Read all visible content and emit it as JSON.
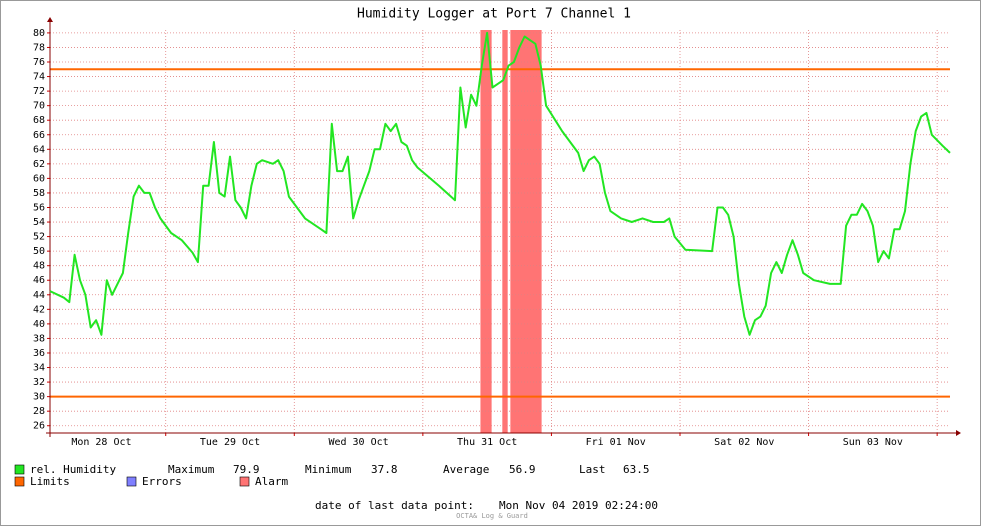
{
  "chart_data": {
    "type": "line",
    "title": "Humidity Logger at Port 7 Channel 1",
    "x": [
      "2019-10-28T02:24",
      "2019-10-28T05:00",
      "2019-10-28T06:00",
      "2019-10-28T07:00",
      "2019-10-28T08:00",
      "2019-10-28T09:00",
      "2019-10-28T10:00",
      "2019-10-28T11:00",
      "2019-10-28T12:00",
      "2019-10-28T13:00",
      "2019-10-28T14:00",
      "2019-10-28T15:00",
      "2019-10-28T16:00",
      "2019-10-28T17:00",
      "2019-10-28T18:00",
      "2019-10-28T19:00",
      "2019-10-28T20:00",
      "2019-10-28T21:00",
      "2019-10-28T22:00",
      "2019-10-28T23:00",
      "2019-10-29T01:00",
      "2019-10-29T03:00",
      "2019-10-29T05:00",
      "2019-10-29T06:00",
      "2019-10-29T07:00",
      "2019-10-29T08:00",
      "2019-10-29T09:00",
      "2019-10-29T10:00",
      "2019-10-29T11:00",
      "2019-10-29T12:00",
      "2019-10-29T13:00",
      "2019-10-29T14:00",
      "2019-10-29T15:00",
      "2019-10-29T16:00",
      "2019-10-29T17:00",
      "2019-10-29T18:00",
      "2019-10-29T20:00",
      "2019-10-29T21:00",
      "2019-10-29T22:00",
      "2019-10-29T23:00",
      "2019-10-30T02:00",
      "2019-10-30T05:00",
      "2019-10-30T06:00",
      "2019-10-30T07:00",
      "2019-10-30T08:00",
      "2019-10-30T09:00",
      "2019-10-30T10:00",
      "2019-10-30T11:00",
      "2019-10-30T12:00",
      "2019-10-30T13:00",
      "2019-10-30T14:00",
      "2019-10-30T15:00",
      "2019-10-30T16:00",
      "2019-10-30T17:00",
      "2019-10-30T18:00",
      "2019-10-30T19:00",
      "2019-10-30T20:00",
      "2019-10-30T21:00",
      "2019-10-30T22:00",
      "2019-10-30T23:00",
      "2019-10-31T03:00",
      "2019-10-31T06:00",
      "2019-10-31T07:00",
      "2019-10-31T08:00",
      "2019-10-31T09:00",
      "2019-10-31T10:00",
      "2019-10-31T11:00",
      "2019-10-31T12:00",
      "2019-10-31T13:00",
      "2019-10-31T14:00",
      "2019-10-31T15:00",
      "2019-10-31T16:00",
      "2019-10-31T17:00",
      "2019-10-31T18:00",
      "2019-10-31T19:00",
      "2019-10-31T20:00",
      "2019-10-31T21:00",
      "2019-10-31T22:00",
      "2019-10-31T23:00",
      "2019-11-01T02:00",
      "2019-11-01T05:00",
      "2019-11-01T06:00",
      "2019-11-01T07:00",
      "2019-11-01T08:00",
      "2019-11-01T09:00",
      "2019-11-01T10:00",
      "2019-11-01T11:00",
      "2019-11-01T13:00",
      "2019-11-01T15:00",
      "2019-11-01T17:00",
      "2019-11-01T19:00",
      "2019-11-01T21:00",
      "2019-11-01T22:00",
      "2019-11-01T23:00",
      "2019-11-02T01:00",
      "2019-11-02T06:00",
      "2019-11-02T07:00",
      "2019-11-02T08:00",
      "2019-11-02T09:00",
      "2019-11-02T10:00",
      "2019-11-02T11:00",
      "2019-11-02T12:00",
      "2019-11-02T13:00",
      "2019-11-02T14:00",
      "2019-11-02T15:00",
      "2019-11-02T16:00",
      "2019-11-02T17:00",
      "2019-11-02T18:00",
      "2019-11-02T19:00",
      "2019-11-02T20:00",
      "2019-11-02T21:00",
      "2019-11-02T22:00",
      "2019-11-02T23:00",
      "2019-11-03T01:00",
      "2019-11-03T04:00",
      "2019-11-03T06:00",
      "2019-11-03T07:00",
      "2019-11-03T08:00",
      "2019-11-03T09:00",
      "2019-11-03T10:00",
      "2019-11-03T11:00",
      "2019-11-03T12:00",
      "2019-11-03T13:00",
      "2019-11-03T14:00",
      "2019-11-03T15:00",
      "2019-11-03T16:00",
      "2019-11-03T17:00",
      "2019-11-03T18:00",
      "2019-11-03T19:00",
      "2019-11-03T20:00",
      "2019-11-03T21:00",
      "2019-11-03T22:00",
      "2019-11-03T23:00",
      "2019-11-04T01:00",
      "2019-11-04T02:24"
    ],
    "series": [
      {
        "name": "rel. Humidity",
        "color": "#22e622",
        "values": [
          44.5,
          43.6,
          43,
          49.5,
          46,
          44,
          39.5,
          40.5,
          38.5,
          46,
          44,
          45.5,
          47,
          52.5,
          57.5,
          59,
          58,
          58,
          56,
          54.5,
          52.5,
          51.5,
          49.8,
          48.5,
          59,
          59,
          65,
          58,
          57.5,
          63,
          57,
          56,
          54.5,
          59,
          62,
          62.5,
          62,
          62.5,
          61,
          57.5,
          54.5,
          53,
          52.5,
          67.5,
          61,
          61,
          63,
          54.5,
          57,
          59,
          61,
          64,
          64,
          67.5,
          66.5,
          67.5,
          65,
          64.5,
          62.5,
          61.5,
          59,
          57,
          72.5,
          67,
          71.5,
          70,
          75.5,
          80,
          72.5,
          73,
          73.5,
          75.5,
          76,
          78,
          79.5,
          79,
          78.5,
          75.5,
          70,
          66.5,
          63.5,
          61,
          62.5,
          63,
          62,
          58,
          55.5,
          54.5,
          54,
          54.5,
          54,
          54,
          54.5,
          52,
          50.2,
          50,
          56,
          56,
          55,
          52,
          45.5,
          41,
          38.5,
          40.5,
          41,
          42.5,
          47,
          48.5,
          47,
          49.5,
          51.5,
          49.5,
          47,
          46,
          45.5,
          45.5,
          53.5,
          55,
          55,
          56.5,
          55.5,
          53.5,
          48.5,
          50,
          49,
          53,
          53,
          55.5,
          62,
          66.5,
          68.5,
          69,
          66,
          64.5,
          63.5
        ]
      }
    ],
    "limits": {
      "name": "Limits",
      "color": "#ff6600",
      "values": [
        75,
        30
      ]
    },
    "errors": {
      "name": "Errors",
      "color": "#7f7fff"
    },
    "alarm": {
      "name": "Alarm",
      "color": "#ff7474",
      "periods": [
        [
          "2019-10-31T10:45",
          "2019-10-31T12:50"
        ],
        [
          "2019-10-31T14:50",
          "2019-10-31T15:50"
        ],
        [
          "2019-10-31T16:20",
          "2019-10-31T22:10"
        ]
      ]
    },
    "stats": [
      {
        "label": "Maximum",
        "value": 79.9
      },
      {
        "label": "Minimum",
        "value": 37.8
      },
      {
        "label": "Average",
        "value": 56.9
      },
      {
        "label": "Last",
        "value": 63.5
      }
    ],
    "footer": {
      "label": "date of last data point:",
      "value": "Mon Nov 04 2019 02:24:00"
    },
    "watermark": "OCTA& Log & Guard",
    "xlim": [
      "2019-10-28T02:24",
      "2019-11-04T02:24"
    ],
    "xticks": [
      {
        "value": "2019-10-28T12:00",
        "label": "Mon 28 Oct"
      },
      {
        "value": "2019-10-29T12:00",
        "label": "Tue 29 Oct"
      },
      {
        "value": "2019-10-30T12:00",
        "label": "Wed 30 Oct"
      },
      {
        "value": "2019-10-31T12:00",
        "label": "Thu 31 Oct"
      },
      {
        "value": "2019-11-01T12:00",
        "label": "Fri 01 Nov"
      },
      {
        "value": "2019-11-02T12:00",
        "label": "Sat 02 Nov"
      },
      {
        "value": "2019-11-03T12:00",
        "label": "Sun 03 Nov"
      }
    ],
    "xgrid": [
      "2019-10-29T00:00",
      "2019-10-30T00:00",
      "2019-10-31T00:00",
      "2019-11-01T00:00",
      "2019-11-02T00:00",
      "2019-11-03T00:00",
      "2019-11-04T00:00"
    ],
    "ylim": [
      25,
      80.4
    ],
    "yticks": [
      26,
      28,
      30,
      32,
      34,
      36,
      38,
      40,
      42,
      44,
      46,
      48,
      50,
      52,
      54,
      56,
      58,
      60,
      62,
      64,
      66,
      68,
      70,
      72,
      74,
      76,
      78,
      80
    ],
    "grid": true
  }
}
